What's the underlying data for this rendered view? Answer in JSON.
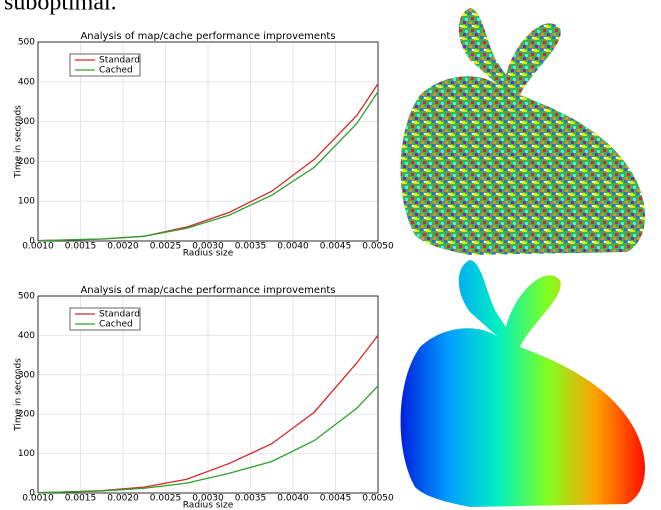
{
  "heading": "suboptimal.",
  "chart_data": [
    {
      "type": "line",
      "title": "Analysis of map/cache performance improvements",
      "x_label": "Radius size",
      "y_label": "Time in seconds",
      "x": [
        0.001,
        0.00125,
        0.00175,
        0.00225,
        0.00275,
        0.00325,
        0.00375,
        0.00425,
        0.00475,
        0.005
      ],
      "series": [
        {
          "name": "Standard",
          "color": "#d62728",
          "values": [
            1,
            2,
            5,
            12,
            35,
            72,
            125,
            205,
            315,
            395
          ]
        },
        {
          "name": "Cached",
          "color": "#2ca02c",
          "values": [
            1,
            2,
            5,
            12,
            32,
            65,
            115,
            185,
            295,
            375
          ]
        }
      ],
      "xlim": [
        0.001,
        0.005
      ],
      "xticks": [
        {
          "value": 0.001,
          "label": "0.0010"
        },
        {
          "value": 0.0015,
          "label": "0.0015"
        },
        {
          "value": 0.002,
          "label": "0.0020"
        },
        {
          "value": 0.0025,
          "label": "0.0025"
        },
        {
          "value": 0.003,
          "label": "0.0030"
        },
        {
          "value": 0.0035,
          "label": "0.0035"
        },
        {
          "value": 0.004,
          "label": "0.0040"
        },
        {
          "value": 0.0045,
          "label": "0.0045"
        },
        {
          "value": 0.005,
          "label": "0.0050"
        }
      ],
      "ylim": [
        0,
        500
      ],
      "yticks": [
        0,
        100,
        200,
        300,
        400,
        500
      ],
      "grid": true,
      "legend": "upper-left"
    },
    {
      "type": "line",
      "title": "Analysis of map/cache performance improvements",
      "x_label": "Radius size",
      "y_label": "Time in seconds",
      "x": [
        0.001,
        0.00125,
        0.00175,
        0.00225,
        0.00275,
        0.00325,
        0.00375,
        0.00425,
        0.00475,
        0.005
      ],
      "series": [
        {
          "name": "Standard",
          "color": "#d62728",
          "values": [
            1,
            2,
            6,
            15,
            35,
            75,
            125,
            205,
            330,
            400
          ]
        },
        {
          "name": "Cached",
          "color": "#2ca02c",
          "values": [
            1,
            2,
            5,
            12,
            25,
            50,
            80,
            133,
            215,
            272
          ]
        }
      ],
      "xlim": [
        0.001,
        0.005
      ],
      "xticks": [
        {
          "value": 0.001,
          "label": "0.0010"
        },
        {
          "value": 0.0015,
          "label": "0.0015"
        },
        {
          "value": 0.002,
          "label": "0.0020"
        },
        {
          "value": 0.0025,
          "label": "0.0025"
        },
        {
          "value": 0.003,
          "label": "0.0030"
        },
        {
          "value": 0.0035,
          "label": "0.0035"
        },
        {
          "value": 0.004,
          "label": "0.0040"
        },
        {
          "value": 0.0045,
          "label": "0.0045"
        },
        {
          "value": 0.005,
          "label": "0.0050"
        }
      ],
      "ylim": [
        0,
        500
      ],
      "yticks": [
        0,
        100,
        200,
        300,
        400,
        500
      ],
      "grid": true,
      "legend": "upper-left"
    }
  ]
}
